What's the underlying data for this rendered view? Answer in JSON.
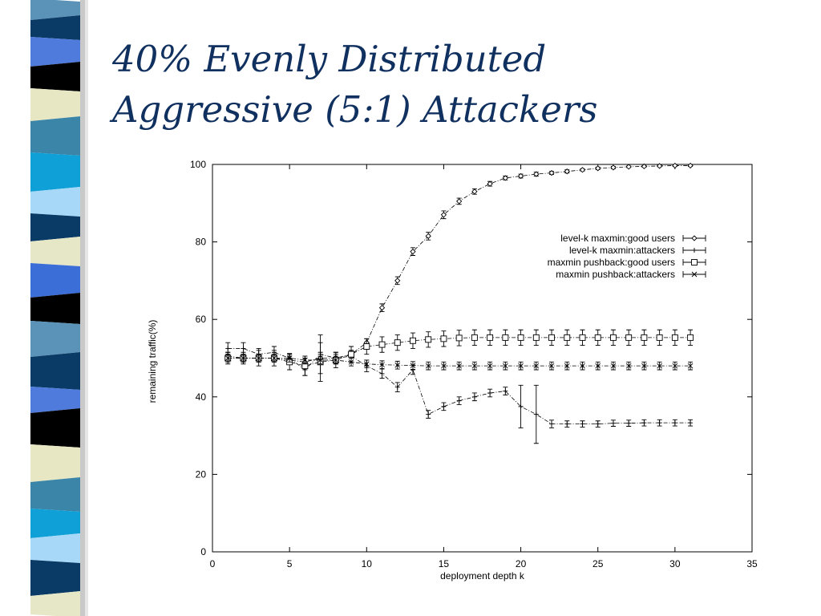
{
  "slide": {
    "title_line1": "40% Evenly Distributed",
    "title_line2": "Aggressive (5:1) Attackers"
  },
  "colors": {
    "stripes": [
      "#5b93b8",
      "#0a3a66",
      "#4f7bdc",
      "#000000",
      "#e7e8c3",
      "#3a85a8",
      "#0ea0d6",
      "#a8d8f8",
      "#0a3a66",
      "#e6e7c6",
      "#3c6ed8",
      "#000000"
    ],
    "title": "#10305f"
  },
  "chart_data": {
    "type": "line",
    "xlabel": "deployment depth k",
    "ylabel": "remaining traffic(%)",
    "xlim": [
      0,
      35
    ],
    "ylim": [
      0,
      100
    ],
    "xticks": [
      0,
      5,
      10,
      15,
      20,
      25,
      30,
      35
    ],
    "yticks": [
      0,
      20,
      40,
      60,
      80,
      100
    ],
    "legend_position": "top-right",
    "grid": false,
    "x": [
      1,
      2,
      3,
      4,
      5,
      6,
      7,
      8,
      9,
      10,
      11,
      12,
      13,
      14,
      15,
      16,
      17,
      18,
      19,
      20,
      21,
      22,
      23,
      24,
      25,
      26,
      27,
      28,
      29,
      30,
      31
    ],
    "series": [
      {
        "name": "level-k maxmin:good users",
        "marker": "diamond",
        "values": [
          50.5,
          50,
          50,
          50,
          49.5,
          49,
          50,
          50,
          51,
          54,
          63,
          70,
          77.5,
          81.5,
          87,
          90.5,
          93,
          95,
          96.5,
          97,
          97.5,
          97.8,
          98.2,
          98.6,
          99,
          99.2,
          99.4,
          99.5,
          99.6,
          99.7,
          99.7
        ],
        "errors": [
          1,
          1,
          1,
          1,
          1,
          1,
          1.5,
          1,
          1,
          1,
          1,
          1,
          1,
          1,
          1,
          0.8,
          0.7,
          0.6,
          0.5,
          0.5,
          0.5,
          0.4,
          0.4,
          0.3,
          0.3,
          0.3,
          0.2,
          0.2,
          0.2,
          0.2,
          0.2
        ]
      },
      {
        "name": "level-k maxmin:attackers",
        "marker": "plus",
        "values": [
          52.5,
          52.5,
          51,
          51.5,
          50,
          47,
          51,
          50,
          50.5,
          48,
          46,
          42.5,
          47,
          35.5,
          37.5,
          39,
          40,
          41,
          41.5,
          37.5,
          35.5,
          33,
          33,
          33,
          33,
          33.2,
          33.2,
          33.3,
          33.3,
          33.3,
          33.3
        ],
        "errors": [
          1.5,
          1.5,
          1.5,
          1.5,
          1.2,
          1.5,
          5,
          1.5,
          1.5,
          1.5,
          1.2,
          1.2,
          1.2,
          1,
          1,
          1,
          1,
          1,
          1,
          5.5,
          7.5,
          1,
          0.8,
          0.8,
          0.8,
          0.8,
          0.8,
          0.8,
          0.8,
          0.8,
          0.8
        ]
      },
      {
        "name": "maxmin pushback:good users",
        "marker": "square",
        "values": [
          50,
          50,
          50,
          50,
          49,
          48,
          49,
          49.5,
          51,
          53,
          53.5,
          54,
          54.5,
          54.8,
          55,
          55.2,
          55.3,
          55.3,
          55.3,
          55.3,
          55.3,
          55.3,
          55.3,
          55.3,
          55.3,
          55.3,
          55.3,
          55.3,
          55.3,
          55.3,
          55.3
        ],
        "errors": [
          1.5,
          1.5,
          2,
          2,
          2,
          2.5,
          5,
          2,
          2,
          2,
          2,
          2,
          2,
          2,
          2,
          2,
          2,
          2,
          2,
          2,
          2,
          2,
          2,
          2,
          2,
          2,
          2,
          2,
          2,
          2,
          2
        ]
      },
      {
        "name": "maxmin pushback:attackers",
        "marker": "cross",
        "values": [
          50,
          50,
          50,
          50,
          50,
          49.5,
          49.5,
          49.5,
          49,
          48.5,
          48.3,
          48.2,
          48.1,
          48,
          48,
          48,
          48,
          48,
          48,
          48,
          48,
          48,
          48,
          48,
          48,
          48,
          48,
          48,
          48,
          48,
          48
        ],
        "errors": [
          1,
          1,
          1,
          1,
          1,
          1,
          1,
          1,
          1,
          1,
          1,
          1,
          1,
          1,
          1,
          1,
          1,
          1,
          1,
          1,
          1,
          1,
          1,
          1,
          1,
          1,
          1,
          1,
          1,
          1,
          1
        ]
      }
    ]
  }
}
